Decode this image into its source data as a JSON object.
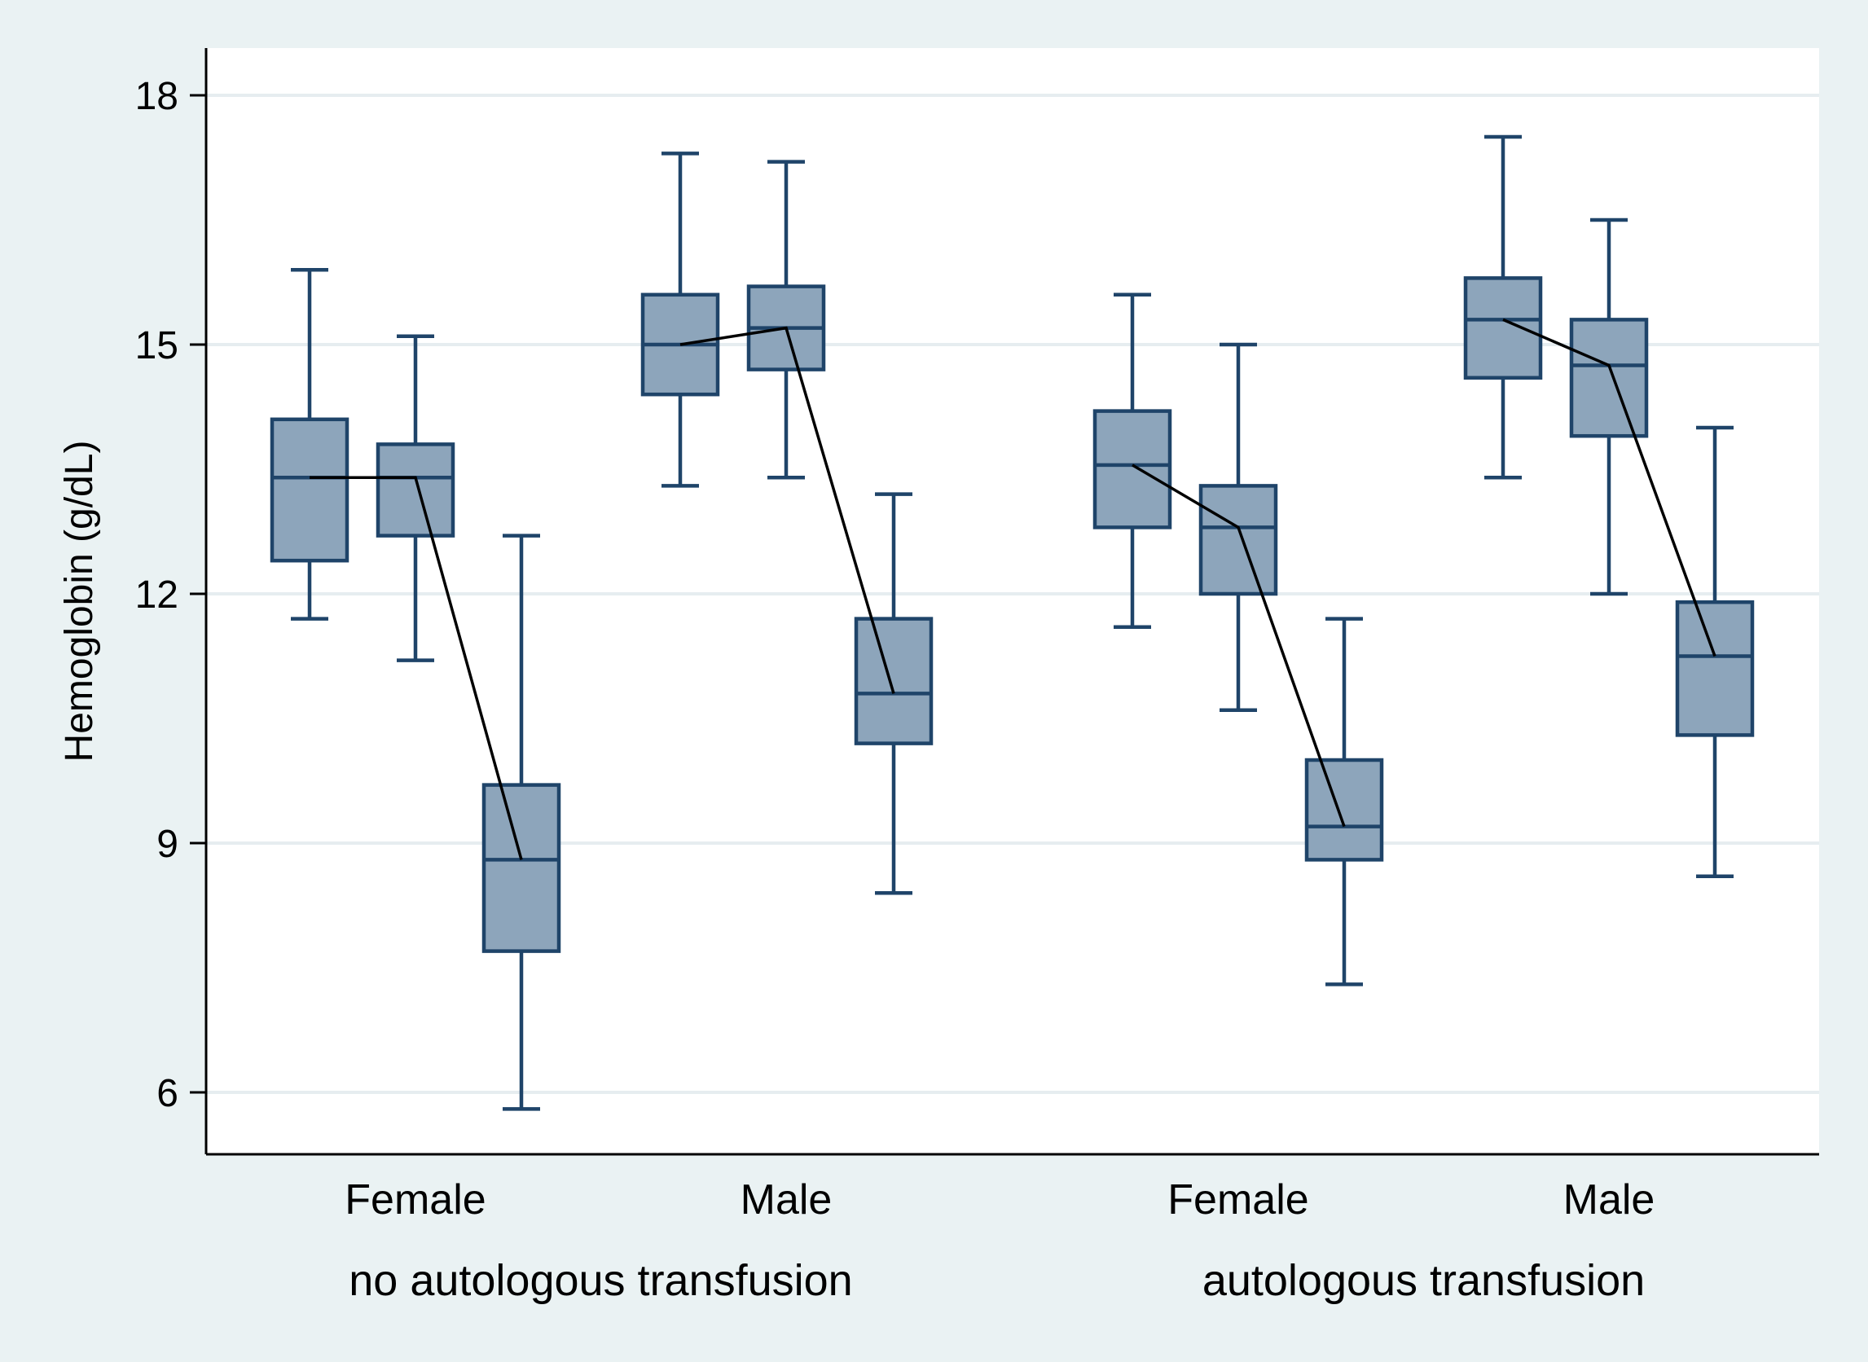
{
  "chart_data": {
    "type": "box",
    "title": "",
    "ylabel": "Hemoglobin (g/dL)",
    "xlabel": "",
    "ylim": [
      5.2,
      18.6
    ],
    "yticks": [
      6,
      9,
      12,
      15,
      18
    ],
    "grid": true,
    "legend": "none",
    "groups": [
      {
        "label": "no autologous transfusion",
        "subgroups": [
          {
            "label": "Female",
            "boxes": [
              {
                "whisker_low": 11.7,
                "q1": 12.4,
                "median": 13.4,
                "q3": 14.1,
                "whisker_high": 15.9
              },
              {
                "whisker_low": 11.2,
                "q1": 12.7,
                "median": 13.4,
                "q3": 13.8,
                "whisker_high": 15.1
              },
              {
                "whisker_low": 5.8,
                "q1": 7.7,
                "median": 8.8,
                "q3": 9.7,
                "whisker_high": 12.7
              }
            ]
          },
          {
            "label": "Male",
            "boxes": [
              {
                "whisker_low": 13.3,
                "q1": 14.4,
                "median": 15.0,
                "q3": 15.6,
                "whisker_high": 17.3
              },
              {
                "whisker_low": 13.4,
                "q1": 14.7,
                "median": 15.2,
                "q3": 15.7,
                "whisker_high": 17.2
              },
              {
                "whisker_low": 8.4,
                "q1": 10.2,
                "median": 10.8,
                "q3": 11.7,
                "whisker_high": 13.2
              }
            ]
          }
        ]
      },
      {
        "label": "autologous transfusion",
        "subgroups": [
          {
            "label": "Female",
            "boxes": [
              {
                "whisker_low": 11.6,
                "q1": 12.8,
                "median": 13.55,
                "q3": 14.2,
                "whisker_high": 15.6
              },
              {
                "whisker_low": 10.6,
                "q1": 12.0,
                "median": 12.8,
                "q3": 13.3,
                "whisker_high": 15.0
              },
              {
                "whisker_low": 7.3,
                "q1": 8.8,
                "median": 9.2,
                "q3": 10.0,
                "whisker_high": 11.7
              }
            ]
          },
          {
            "label": "Male",
            "boxes": [
              {
                "whisker_low": 13.4,
                "q1": 14.6,
                "median": 15.3,
                "q3": 15.8,
                "whisker_high": 17.5
              },
              {
                "whisker_low": 12.0,
                "q1": 13.9,
                "median": 14.75,
                "q3": 15.3,
                "whisker_high": 16.5
              },
              {
                "whisker_low": 8.6,
                "q1": 10.3,
                "median": 11.25,
                "q3": 11.9,
                "whisker_high": 14.0
              }
            ]
          }
        ]
      }
    ],
    "colors": {
      "box_fill": "#8da5bb",
      "box_stroke": "#1f4469",
      "median_line": "#000000",
      "grid": "#e6edf0",
      "plot_bg": "#ffffff",
      "outer_bg": "#eaf2f3"
    }
  }
}
